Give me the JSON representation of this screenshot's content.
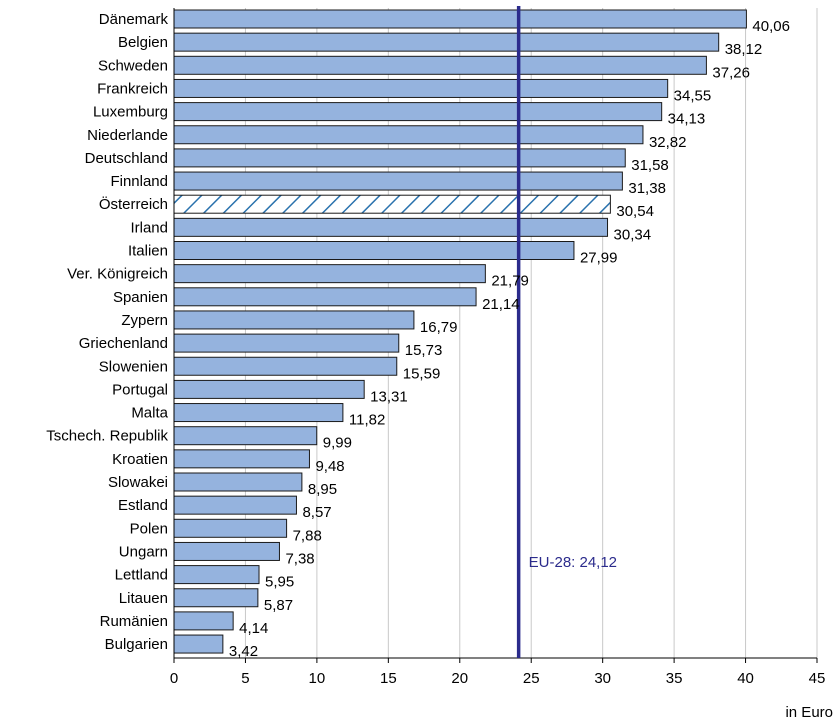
{
  "chart_data": {
    "type": "bar",
    "orientation": "horizontal",
    "categories": [
      "Dänemark",
      "Belgien",
      "Schweden",
      "Frankreich",
      "Luxemburg",
      "Niederlande",
      "Deutschland",
      "Finnland",
      "Österreich",
      "Irland",
      "Italien",
      "Ver. Königreich",
      "Spanien",
      "Zypern",
      "Griechenland",
      "Slowenien",
      "Portugal",
      "Malta",
      "Tschech. Republik",
      "Kroatien",
      "Slowakei",
      "Estland",
      "Polen",
      "Ungarn",
      "Lettland",
      "Litauen",
      "Rumänien",
      "Bulgarien"
    ],
    "values": [
      40.06,
      38.12,
      37.26,
      34.55,
      34.13,
      32.82,
      31.58,
      31.38,
      30.54,
      30.34,
      27.99,
      21.79,
      21.14,
      16.79,
      15.73,
      15.59,
      13.31,
      11.82,
      9.99,
      9.48,
      8.95,
      8.57,
      7.88,
      7.38,
      5.95,
      5.87,
      4.14,
      3.42
    ],
    "value_labels": [
      "40,06",
      "38,12",
      "37,26",
      "34,55",
      "34,13",
      "32,82",
      "31,58",
      "31,38",
      "30,54",
      "30,34",
      "27,99",
      "21,79",
      "21,14",
      "16,79",
      "15,73",
      "15,59",
      "13,31",
      "11,82",
      "9,99",
      "9,48",
      "8,95",
      "8,57",
      "7,88",
      "7,38",
      "5,95",
      "5,87",
      "4,14",
      "3,42"
    ],
    "highlight_category": "Österreich",
    "reference_line": {
      "value": 24.12,
      "label": "EU-28: 24,12"
    },
    "xlim": [
      0,
      45
    ],
    "x_ticks": [
      0,
      5,
      10,
      15,
      20,
      25,
      30,
      35,
      40,
      45
    ],
    "xlabel": "in Euro",
    "grid": "vertical",
    "colors": {
      "bar_fill": "#95b3de",
      "bar_stroke": "#1a1a1a",
      "highlight_hatch": "#2a72ad",
      "reference_line": "#2b2b8c",
      "grid": "#c8c8c8"
    }
  }
}
